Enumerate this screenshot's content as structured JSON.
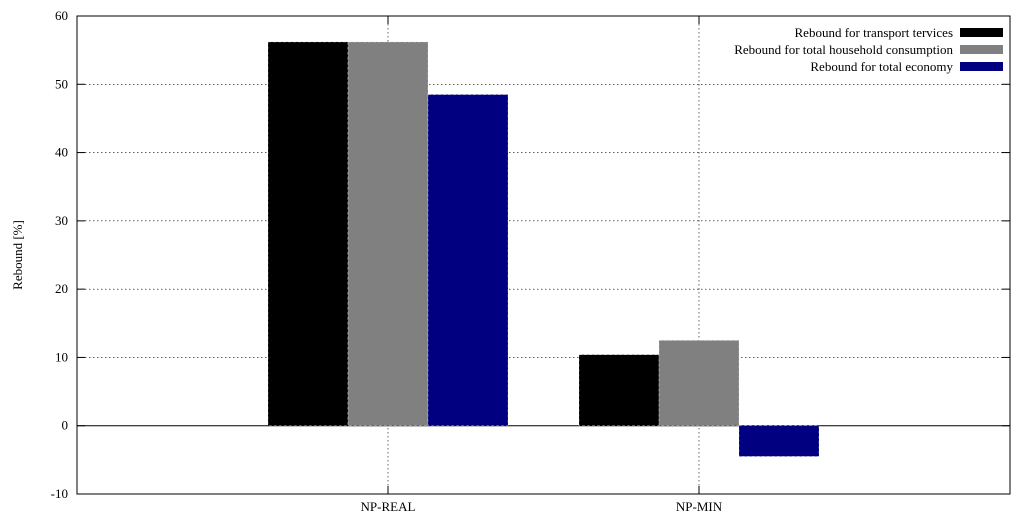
{
  "chart_data": {
    "type": "bar",
    "title": "",
    "xlabel": "",
    "ylabel": "Rebound [%]",
    "ylim": [
      -10,
      60
    ],
    "yticks": [
      -10,
      0,
      10,
      20,
      30,
      40,
      50,
      60
    ],
    "grid": true,
    "legend_position": "top-right",
    "categories": [
      "NP-REAL",
      "NP-MIN"
    ],
    "series": [
      {
        "name": "Rebound for transport tervices",
        "color": "#000000",
        "values": [
          56.2,
          10.4
        ]
      },
      {
        "name": "Rebound for total household consumption",
        "color": "#808080",
        "values": [
          56.2,
          12.5
        ]
      },
      {
        "name": "Rebound for total economy",
        "color": "#000080",
        "values": [
          48.5,
          -4.5
        ]
      }
    ]
  }
}
